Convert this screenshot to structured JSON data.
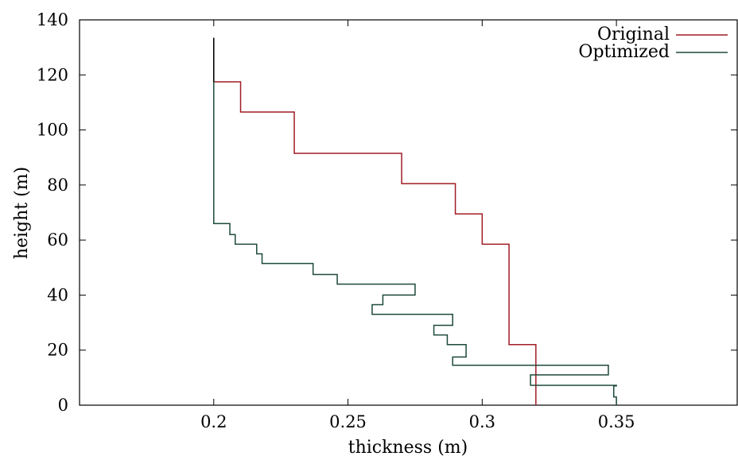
{
  "chart_data": {
    "type": "line",
    "title": "",
    "xlabel": "thickness (m)",
    "ylabel": "height (m)",
    "xlim": [
      0.15,
      0.395
    ],
    "ylim": [
      0,
      140
    ],
    "xticks": [
      0.2,
      0.25,
      0.3,
      0.35
    ],
    "xtick_labels": [
      "0.2",
      "0.25",
      "0.3",
      "0.35"
    ],
    "yticks": [
      0,
      20,
      40,
      60,
      80,
      100,
      120,
      140
    ],
    "ytick_labels": [
      "0",
      "20",
      "40",
      "60",
      "80",
      "100",
      "120",
      "140"
    ],
    "grid": false,
    "legend_position": "top-right",
    "series": [
      {
        "name": "Original",
        "color": "#a01c25",
        "points": [
          [
            0.32,
            0
          ],
          [
            0.32,
            22
          ],
          [
            0.31,
            22
          ],
          [
            0.31,
            58.5
          ],
          [
            0.3,
            58.5
          ],
          [
            0.3,
            69.5
          ],
          [
            0.29,
            69.5
          ],
          [
            0.29,
            80.5
          ],
          [
            0.27,
            80.5
          ],
          [
            0.27,
            91.5
          ],
          [
            0.23,
            91.5
          ],
          [
            0.23,
            106.5
          ],
          [
            0.21,
            106.5
          ],
          [
            0.21,
            117.5
          ],
          [
            0.2,
            117.5
          ],
          [
            0.2,
            133.5
          ]
        ]
      },
      {
        "name": "Optimized",
        "color": "#1e4a38",
        "points": [
          [
            0.35,
            0
          ],
          [
            0.35,
            3
          ],
          [
            0.349,
            3
          ],
          [
            0.349,
            7
          ],
          [
            0.35,
            7
          ],
          [
            0.35,
            7.2
          ],
          [
            0.318,
            7.2
          ],
          [
            0.318,
            11
          ],
          [
            0.347,
            11
          ],
          [
            0.347,
            14.5
          ],
          [
            0.289,
            14.5
          ],
          [
            0.289,
            17.5
          ],
          [
            0.294,
            17.5
          ],
          [
            0.294,
            22
          ],
          [
            0.287,
            22
          ],
          [
            0.287,
            25.5
          ],
          [
            0.282,
            25.5
          ],
          [
            0.282,
            29
          ],
          [
            0.289,
            29
          ],
          [
            0.289,
            33
          ],
          [
            0.259,
            33
          ],
          [
            0.259,
            36.5
          ],
          [
            0.263,
            36.5
          ],
          [
            0.263,
            40
          ],
          [
            0.275,
            40
          ],
          [
            0.275,
            44
          ],
          [
            0.246,
            44
          ],
          [
            0.246,
            47.5
          ],
          [
            0.237,
            47.5
          ],
          [
            0.237,
            51.5
          ],
          [
            0.218,
            51.5
          ],
          [
            0.218,
            55
          ],
          [
            0.216,
            55
          ],
          [
            0.216,
            58.5
          ],
          [
            0.208,
            58.5
          ],
          [
            0.208,
            62
          ],
          [
            0.206,
            62
          ],
          [
            0.206,
            66
          ],
          [
            0.2,
            66
          ],
          [
            0.2,
            133.5
          ]
        ]
      }
    ],
    "top_stub": {
      "x": 0.2,
      "y_from": 117.5,
      "y_to": 133.5,
      "color": "#000000"
    }
  }
}
